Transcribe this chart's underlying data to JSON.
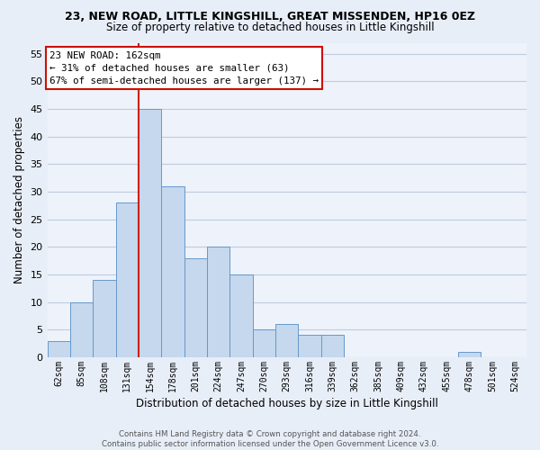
{
  "title1": "23, NEW ROAD, LITTLE KINGSHILL, GREAT MISSENDEN, HP16 0EZ",
  "title2": "Size of property relative to detached houses in Little Kingshill",
  "xlabel": "Distribution of detached houses by size in Little Kingshill",
  "ylabel": "Number of detached properties",
  "bin_labels": [
    "62sqm",
    "85sqm",
    "108sqm",
    "131sqm",
    "154sqm",
    "178sqm",
    "201sqm",
    "224sqm",
    "247sqm",
    "270sqm",
    "293sqm",
    "316sqm",
    "339sqm",
    "362sqm",
    "385sqm",
    "409sqm",
    "432sqm",
    "455sqm",
    "478sqm",
    "501sqm",
    "524sqm"
  ],
  "bar_heights": [
    3,
    10,
    14,
    28,
    45,
    31,
    18,
    20,
    15,
    5,
    6,
    4,
    4,
    0,
    0,
    0,
    0,
    0,
    1,
    0,
    0
  ],
  "bar_color": "#c5d8ed",
  "bar_edge_color": "#6699cc",
  "vline_x_index": 4,
  "vline_color": "#cc2200",
  "annotation_line1": "23 NEW ROAD: 162sqm",
  "annotation_line2": "← 31% of detached houses are smaller (63)",
  "annotation_line3": "67% of semi-detached houses are larger (137) →",
  "ylim": [
    0,
    57
  ],
  "yticks": [
    0,
    5,
    10,
    15,
    20,
    25,
    30,
    35,
    40,
    45,
    50,
    55
  ],
  "footer_text": "Contains HM Land Registry data © Crown copyright and database right 2024.\nContains public sector information licensed under the Open Government Licence v3.0.",
  "bg_color": "#e8eef8",
  "plot_bg_color": "#eef2fa",
  "grid_color": "#c0ccdd",
  "title1_fontsize": 9,
  "title2_fontsize": 8.5
}
